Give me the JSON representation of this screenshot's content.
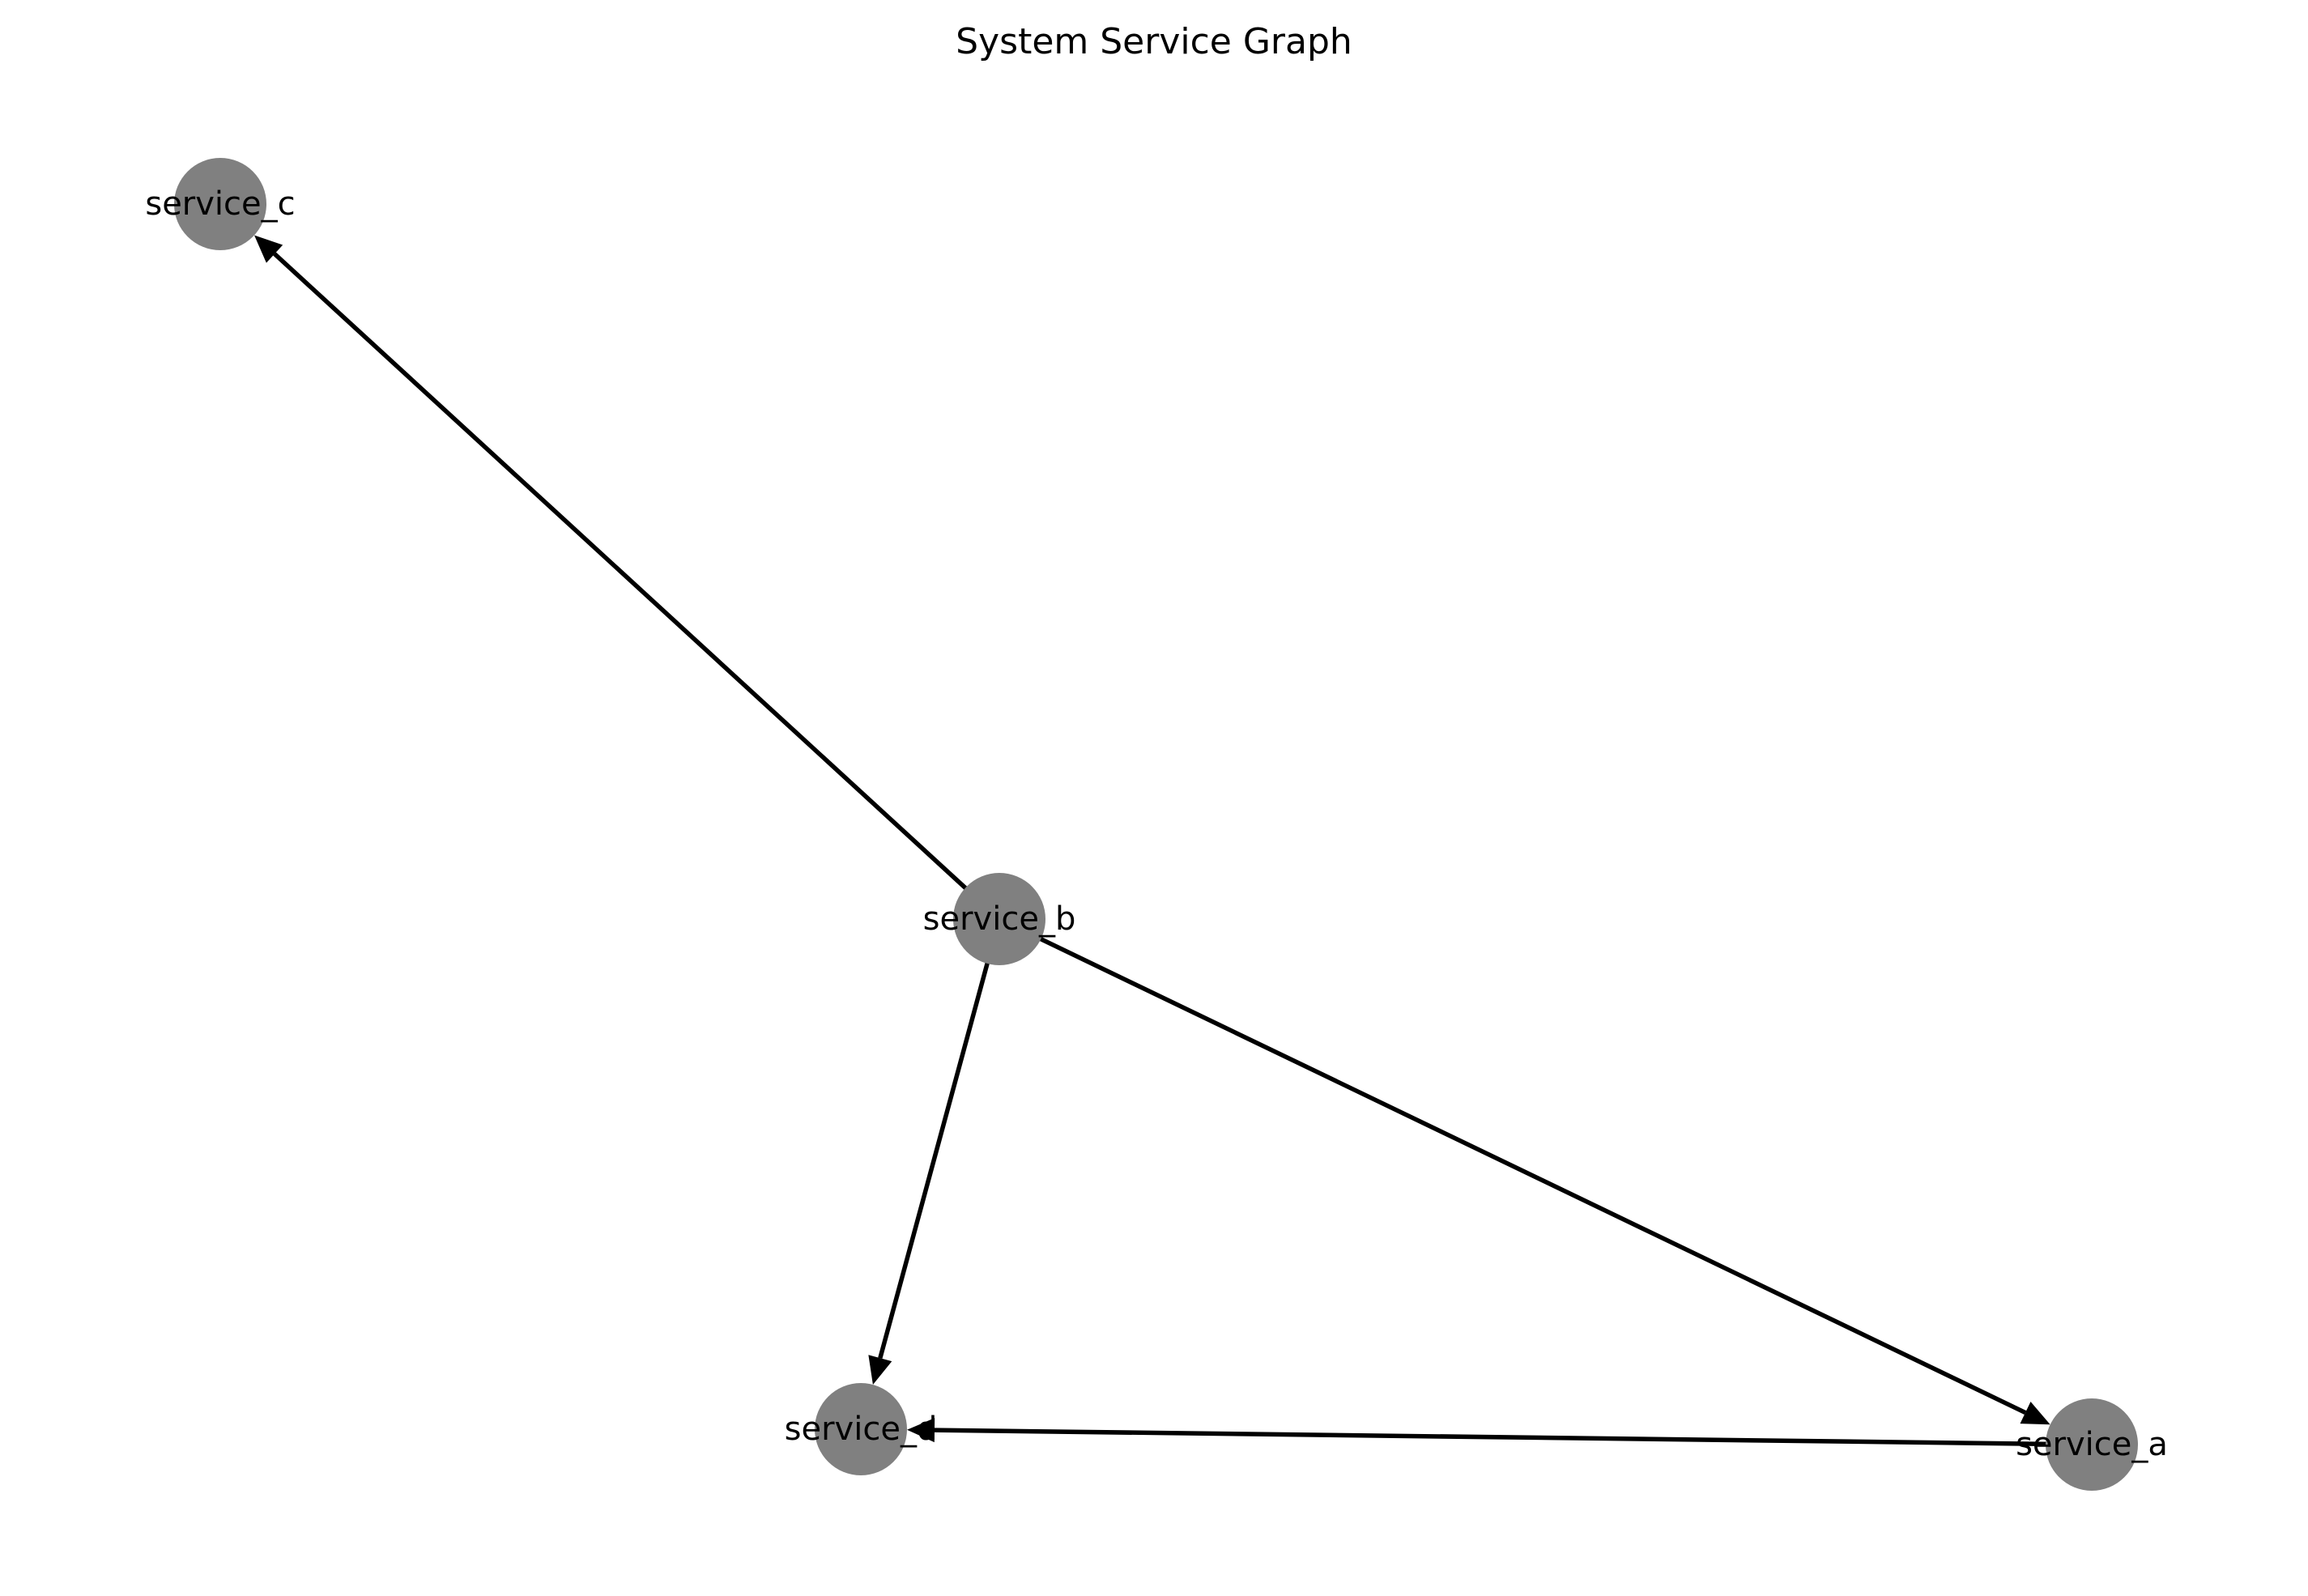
{
  "title": "System Service Graph",
  "colors": {
    "node_fill": "#808080",
    "edge": "#000000",
    "text": "#000000",
    "background": "#ffffff"
  },
  "nodes": [
    {
      "id": "service_c",
      "label": "service_c"
    },
    {
      "id": "service_b",
      "label": "service_b"
    },
    {
      "id": "service_d",
      "label": "service_d"
    },
    {
      "id": "service_a",
      "label": "service_a"
    }
  ],
  "edges": [
    {
      "from": "service_b",
      "to": "service_c",
      "directed": true
    },
    {
      "from": "service_b",
      "to": "service_d",
      "directed": true
    },
    {
      "from": "service_b",
      "to": "service_a",
      "directed": true
    },
    {
      "from": "service_a",
      "to": "service_d",
      "directed": true
    }
  ]
}
